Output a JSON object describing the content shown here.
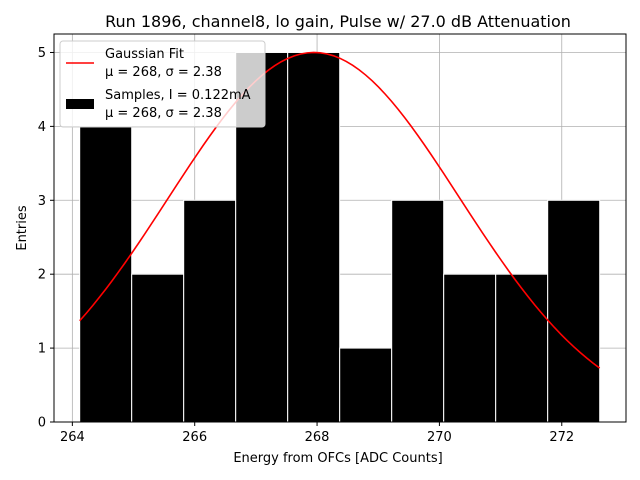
{
  "chart_data": {
    "type": "bar",
    "title": "Run 1896, channel8, lo gain, Pulse w/ 27.0 dB Attenuation",
    "xlabel": "Energy from OFCs [ADC Counts]",
    "ylabel": "Entries",
    "xlim": [
      263.7,
      273.05
    ],
    "ylim": [
      0,
      5.25
    ],
    "xticks": [
      264,
      266,
      268,
      270,
      272
    ],
    "yticks": [
      0,
      1,
      2,
      3,
      4,
      5
    ],
    "grid": true,
    "legend_position": "top-left",
    "histogram": {
      "name": "Samples, I = 0.122mA",
      "stats_label": "μ = 268, σ = 2.38",
      "color": "#000000",
      "edgecolor": "#ffffff",
      "bin_edges": [
        264.12,
        264.97,
        265.82,
        266.67,
        267.52,
        268.37,
        269.22,
        270.07,
        270.92,
        271.77,
        272.62
      ],
      "counts": [
        4,
        2,
        3,
        5,
        5,
        1,
        3,
        2,
        2,
        3
      ]
    },
    "fit": {
      "name": "Gaussian Fit",
      "stats_label": "μ = 268, σ = 2.38",
      "color": "#ff0000",
      "mu": 267.95,
      "sigma": 2.38,
      "amplitude": 5.0,
      "x_range": [
        264.12,
        272.62
      ]
    }
  }
}
